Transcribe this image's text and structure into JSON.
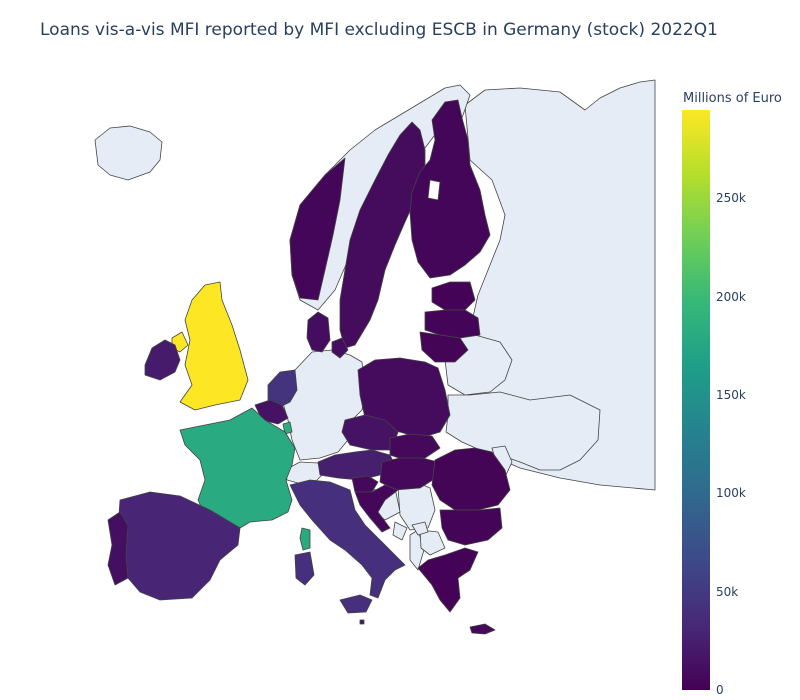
{
  "title": "Loans vis-a-vis MFI reported by MFI excluding ESCB in Germany (stock) 2022Q1",
  "colorbar": {
    "title": "Millions of Euro",
    "min": 0,
    "max": 295000,
    "ticks": [
      {
        "value": 0,
        "label": "0"
      },
      {
        "value": 50000,
        "label": "50k"
      },
      {
        "value": 100000,
        "label": "100k"
      },
      {
        "value": 150000,
        "label": "150k"
      },
      {
        "value": 200000,
        "label": "200k"
      },
      {
        "value": 250000,
        "label": "250k"
      }
    ],
    "colorscale": "viridis"
  },
  "colors": {
    "no_data": "#e5ecf6",
    "border": "#444444",
    "title_text": "#2a3f5f"
  },
  "chart_data": {
    "type": "choropleth",
    "title": "Loans vis-a-vis MFI reported by MFI excluding ESCB in Germany (stock) 2022Q1",
    "unit": "Millions of Euro",
    "regions": [
      {
        "name": "United Kingdom",
        "value": 295000
      },
      {
        "name": "France",
        "value": 180000
      },
      {
        "name": "Luxembourg",
        "value": 185000
      },
      {
        "name": "Netherlands",
        "value": 45000
      },
      {
        "name": "Italy",
        "value": 40000
      },
      {
        "name": "Spain",
        "value": 30000
      },
      {
        "name": "Belgium",
        "value": 15000
      },
      {
        "name": "Ireland",
        "value": 22000
      },
      {
        "name": "Austria",
        "value": 25000
      },
      {
        "name": "Portugal",
        "value": 12000
      },
      {
        "name": "Denmark",
        "value": 10000
      },
      {
        "name": "Sweden",
        "value": 8000
      },
      {
        "name": "Finland",
        "value": 4000
      },
      {
        "name": "Norway",
        "value": 4000
      },
      {
        "name": "Poland",
        "value": 9000
      },
      {
        "name": "Czech Republic",
        "value": 14000
      },
      {
        "name": "Slovakia",
        "value": 6000
      },
      {
        "name": "Hungary",
        "value": 6000
      },
      {
        "name": "Slovenia",
        "value": 7000
      },
      {
        "name": "Croatia",
        "value": 5000
      },
      {
        "name": "Romania",
        "value": 3000
      },
      {
        "name": "Bulgaria",
        "value": 2500
      },
      {
        "name": "Greece",
        "value": 2000
      },
      {
        "name": "Estonia",
        "value": 2000
      },
      {
        "name": "Latvia",
        "value": 2500
      },
      {
        "name": "Lithuania",
        "value": 3000
      },
      {
        "name": "Cyprus",
        "value": 6000
      },
      {
        "name": "Malta",
        "value": 20000
      }
    ]
  }
}
